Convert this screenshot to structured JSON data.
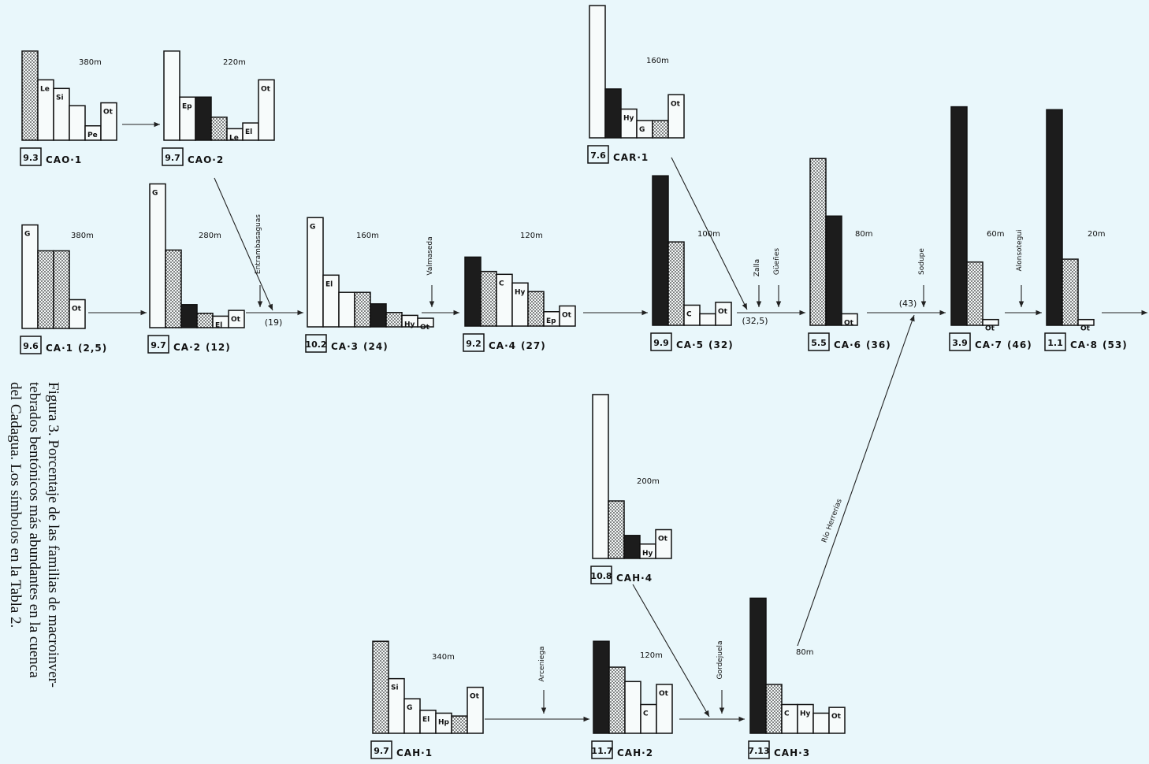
{
  "caption": {
    "lines": [
      "Figura 3. Porcentaje de las familias de macroinver-",
      "tebrados bentónicos más abundantes en la cuenca",
      "del Cadagua. Los símbolos en la Tabla 2."
    ]
  },
  "nodes": [
    {
      "name": "CAO·1",
      "index": "9.3",
      "altitude": "380m",
      "bars": [
        {
          "pattern": "dotted",
          "value": 31
        },
        {
          "label": "Le",
          "pattern": "white",
          "value": 21
        },
        {
          "label": "Si",
          "pattern": "white",
          "value": 18
        },
        {
          "pattern": "white",
          "value": 12
        },
        {
          "label": "Pe",
          "pattern": "white",
          "value": 5
        },
        {
          "label": "Ot",
          "pattern": "white",
          "value": 13
        }
      ]
    },
    {
      "name": "CAO·2",
      "index": "9.7",
      "altitude": "220m",
      "bars": [
        {
          "pattern": "white",
          "value": 31
        },
        {
          "label": "Ep",
          "pattern": "white",
          "value": 15
        },
        {
          "pattern": "dark",
          "value": 15
        },
        {
          "pattern": "dotted",
          "value": 8
        },
        {
          "label": "Le",
          "pattern": "white",
          "value": 4
        },
        {
          "label": "El",
          "pattern": "white",
          "value": 6
        },
        {
          "label": "Ot",
          "pattern": "white",
          "value": 21
        }
      ]
    },
    {
      "name": "CAR·1",
      "index": "7.6",
      "altitude": "160m",
      "bars": [
        {
          "pattern": "white",
          "value": 46
        },
        {
          "pattern": "dark",
          "value": 17
        },
        {
          "label": "Hy",
          "pattern": "white",
          "value": 10
        },
        {
          "label": "G",
          "pattern": "white",
          "value": 6
        },
        {
          "pattern": "dotted",
          "value": 6
        },
        {
          "label": "Ot",
          "pattern": "white",
          "value": 15
        }
      ]
    },
    {
      "name": "CA·1",
      "index": "9.6",
      "altitude": "380m",
      "extra": "(2,5)",
      "bars": [
        {
          "label": "G",
          "pattern": "white",
          "value": 36
        },
        {
          "pattern": "dotted",
          "value": 27
        },
        {
          "pattern": "dotted",
          "value": 27
        },
        {
          "label": "Ot",
          "pattern": "white",
          "value": 10
        }
      ]
    },
    {
      "name": "CA·2",
      "index": "9.7",
      "altitude": "280m",
      "extra": "(12)",
      "bars": [
        {
          "label": "G",
          "pattern": "white",
          "value": 50
        },
        {
          "pattern": "dotted",
          "value": 27
        },
        {
          "pattern": "dark",
          "value": 8
        },
        {
          "pattern": "dotted",
          "value": 5
        },
        {
          "label": "El",
          "pattern": "white",
          "value": 4
        },
        {
          "label": "Ot",
          "pattern": "white",
          "value": 6
        }
      ]
    },
    {
      "name": "CA·3",
      "index": "10.2",
      "altitude": "160m",
      "extra": "(24)",
      "bars": [
        {
          "label": "G",
          "pattern": "white",
          "value": 38
        },
        {
          "label": "El",
          "pattern": "white",
          "value": 18
        },
        {
          "pattern": "white",
          "value": 12
        },
        {
          "pattern": "dotted",
          "value": 12
        },
        {
          "pattern": "dark",
          "value": 8
        },
        {
          "pattern": "dotted",
          "value": 5
        },
        {
          "label": "Hy",
          "pattern": "white",
          "value": 4
        },
        {
          "label": "Ot",
          "pattern": "white",
          "value": 3
        }
      ]
    },
    {
      "name": "CA·4",
      "index": "9.2",
      "altitude": "120m",
      "extra": "(27)",
      "bars": [
        {
          "pattern": "dark",
          "value": 24
        },
        {
          "pattern": "dotted",
          "value": 19
        },
        {
          "label": "C",
          "pattern": "white",
          "value": 18
        },
        {
          "label": "Hy",
          "pattern": "white",
          "value": 15
        },
        {
          "pattern": "dotted",
          "value": 12
        },
        {
          "label": "Ep",
          "pattern": "white",
          "value": 5
        },
        {
          "label": "Ot",
          "pattern": "white",
          "value": 7
        }
      ]
    },
    {
      "name": "CA·5",
      "index": "9.9",
      "altitude": "100m",
      "extra": "(32)",
      "bars": [
        {
          "pattern": "dark",
          "value": 52
        },
        {
          "pattern": "dotted",
          "value": 29
        },
        {
          "label": "C",
          "pattern": "white",
          "value": 7
        },
        {
          "pattern": "white",
          "value": 4
        },
        {
          "label": "Ot",
          "pattern": "white",
          "value": 8
        }
      ]
    },
    {
      "name": "CA·6",
      "index": "5.5",
      "altitude": "80m",
      "extra": "(36)",
      "bars": [
        {
          "pattern": "dotted",
          "value": 58
        },
        {
          "pattern": "dark",
          "value": 38
        },
        {
          "label": "Ot",
          "pattern": "white",
          "value": 4
        }
      ]
    },
    {
      "name": "CA·7",
      "index": "3.9",
      "altitude": "60m",
      "extra": "(46)",
      "bars": [
        {
          "pattern": "dark",
          "value": 76
        },
        {
          "pattern": "dotted",
          "value": 22
        },
        {
          "label": "Ot",
          "pattern": "white",
          "value": 2
        }
      ]
    },
    {
      "name": "CA·8",
      "index": "1.1",
      "altitude": "20m",
      "extra": "(53)",
      "bars": [
        {
          "pattern": "dark",
          "value": 75
        },
        {
          "pattern": "dotted",
          "value": 23
        },
        {
          "label": "Ot",
          "pattern": "white",
          "value": 2
        }
      ]
    },
    {
      "name": "CAH·4",
      "index": "10.8",
      "altitude": "200m",
      "bars": [
        {
          "pattern": "white",
          "value": 57
        },
        {
          "pattern": "dotted",
          "value": 20
        },
        {
          "pattern": "dark",
          "value": 8
        },
        {
          "label": "Hy",
          "pattern": "white",
          "value": 5
        },
        {
          "label": "Ot",
          "pattern": "white",
          "value": 10
        }
      ]
    },
    {
      "name": "CAH·1",
      "index": "9.7",
      "altitude": "340m",
      "bars": [
        {
          "pattern": "dotted",
          "value": 32
        },
        {
          "label": "Si",
          "pattern": "white",
          "value": 19
        },
        {
          "label": "G",
          "pattern": "white",
          "value": 12
        },
        {
          "label": "El",
          "pattern": "white",
          "value": 8
        },
        {
          "label": "Hp",
          "pattern": "white",
          "value": 7
        },
        {
          "pattern": "dotted",
          "value": 6
        },
        {
          "label": "Ot",
          "pattern": "white",
          "value": 16
        }
      ]
    },
    {
      "name": "CAH·2",
      "index": "11.7",
      "altitude": "120m",
      "bars": [
        {
          "pattern": "dark",
          "value": 32
        },
        {
          "pattern": "dotted",
          "value": 23
        },
        {
          "pattern": "white",
          "value": 18
        },
        {
          "label": "C",
          "pattern": "white",
          "value": 10
        },
        {
          "label": "Ot",
          "pattern": "white",
          "value": 17
        }
      ]
    },
    {
      "name": "CAH·3",
      "index": "7.13",
      "altitude": "80m",
      "bars": [
        {
          "pattern": "dark",
          "value": 47
        },
        {
          "pattern": "dotted",
          "value": 17
        },
        {
          "label": "C",
          "pattern": "white",
          "value": 10
        },
        {
          "label": "Hy",
          "pattern": "white",
          "value": 10
        },
        {
          "pattern": "white",
          "value": 7
        },
        {
          "label": "Ot",
          "pattern": "white",
          "value": 9
        }
      ]
    }
  ],
  "tributaries": [
    "Entrambasaguas",
    "Valmaseda",
    "Zalla",
    "Güeñes",
    "Sodupe",
    "Alonsotegui",
    "Arceniega",
    "Gordejuela",
    "Río Herrerías"
  ],
  "confluences": [
    "(19)",
    "(32,5)",
    "(43)"
  ]
}
